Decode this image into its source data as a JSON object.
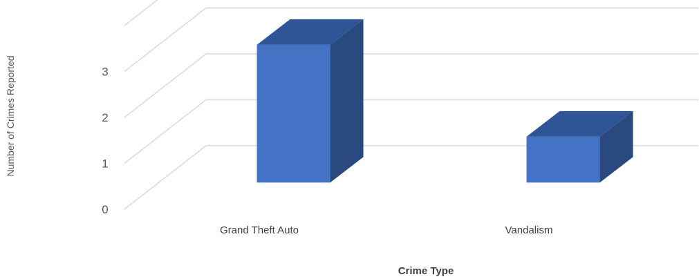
{
  "chart_data": {
    "type": "bar",
    "style": "3d-column",
    "categories": [
      "Grand Theft Auto",
      "Vandalism"
    ],
    "values": [
      3,
      1
    ],
    "xlabel": "Crime Type",
    "ylabel": "Number of Crimes Reported",
    "ylim": [
      0,
      4
    ],
    "yticks": [
      0,
      1,
      2,
      3
    ],
    "grid": true,
    "legend": "none",
    "colors": {
      "bar_front": "#4472C4",
      "bar_top": "#2F5597",
      "bar_side": "#2A4A7F",
      "grid": "#D9D9D9"
    }
  }
}
